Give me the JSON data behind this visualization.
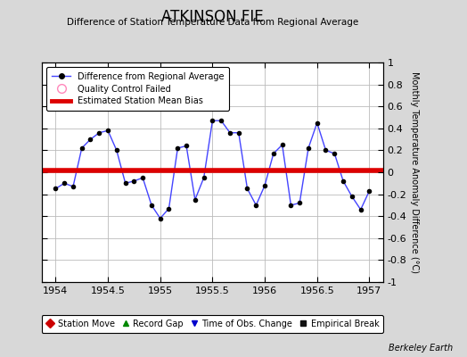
{
  "title": "ATKINSON FIE",
  "subtitle": "Difference of Station Temperature Data from Regional Average",
  "ylabel_right": "Monthly Temperature Anomaly Difference (°C)",
  "xlim": [
    1953.87,
    1957.13
  ],
  "ylim": [
    -1,
    1
  ],
  "bias_line_y": 0.02,
  "background_color": "#d8d8d8",
  "plot_bg_color": "#ffffff",
  "grid_color": "#bbbbbb",
  "x_ticks": [
    1954,
    1954.5,
    1955,
    1955.5,
    1956,
    1956.5,
    1957
  ],
  "x_tick_labels": [
    "1954",
    "1954.5",
    "1955",
    "1955.5",
    "1956",
    "1956.5",
    "1957"
  ],
  "y_ticks": [
    -1,
    -0.8,
    -0.6,
    -0.4,
    -0.2,
    0,
    0.2,
    0.4,
    0.6,
    0.8,
    1
  ],
  "y_tick_labels": [
    "-1",
    "-0.8",
    "-0.6",
    "-0.4",
    "-0.2",
    "0",
    "0.2",
    "0.4",
    "0.6",
    "0.8",
    "1"
  ],
  "line_color": "#4444ff",
  "bias_color": "#dd0000",
  "marker_color": "#000000",
  "data_x": [
    1954.0,
    1954.083,
    1954.167,
    1954.25,
    1954.333,
    1954.417,
    1954.5,
    1954.583,
    1954.667,
    1954.75,
    1954.833,
    1954.917,
    1955.0,
    1955.083,
    1955.167,
    1955.25,
    1955.333,
    1955.417,
    1955.5,
    1955.583,
    1955.667,
    1955.75,
    1955.833,
    1955.917,
    1956.0,
    1956.083,
    1956.167,
    1956.25,
    1956.333,
    1956.417,
    1956.5,
    1956.583,
    1956.667,
    1956.75,
    1956.833,
    1956.917,
    1957.0
  ],
  "data_y": [
    -0.15,
    -0.1,
    -0.13,
    0.22,
    0.3,
    0.36,
    0.38,
    0.2,
    -0.1,
    -0.08,
    -0.05,
    -0.3,
    -0.42,
    -0.33,
    0.22,
    0.24,
    -0.25,
    -0.05,
    0.47,
    0.47,
    0.36,
    0.36,
    -0.15,
    -0.3,
    -0.12,
    0.17,
    0.25,
    -0.3,
    -0.28,
    0.22,
    0.45,
    0.2,
    0.17,
    -0.08,
    -0.22,
    -0.34,
    -0.17
  ],
  "watermark": "Berkeley Earth",
  "legend1_label": "Difference from Regional Average",
  "legend2_label": "Quality Control Failed",
  "legend3_label": "Estimated Station Mean Bias",
  "bottom_legend_items": [
    {
      "label": "Station Move",
      "color": "#cc0000",
      "marker": "D"
    },
    {
      "label": "Record Gap",
      "color": "#008800",
      "marker": "^"
    },
    {
      "label": "Time of Obs. Change",
      "color": "#0000cc",
      "marker": "v"
    },
    {
      "label": "Empirical Break",
      "color": "#111111",
      "marker": "s"
    }
  ]
}
